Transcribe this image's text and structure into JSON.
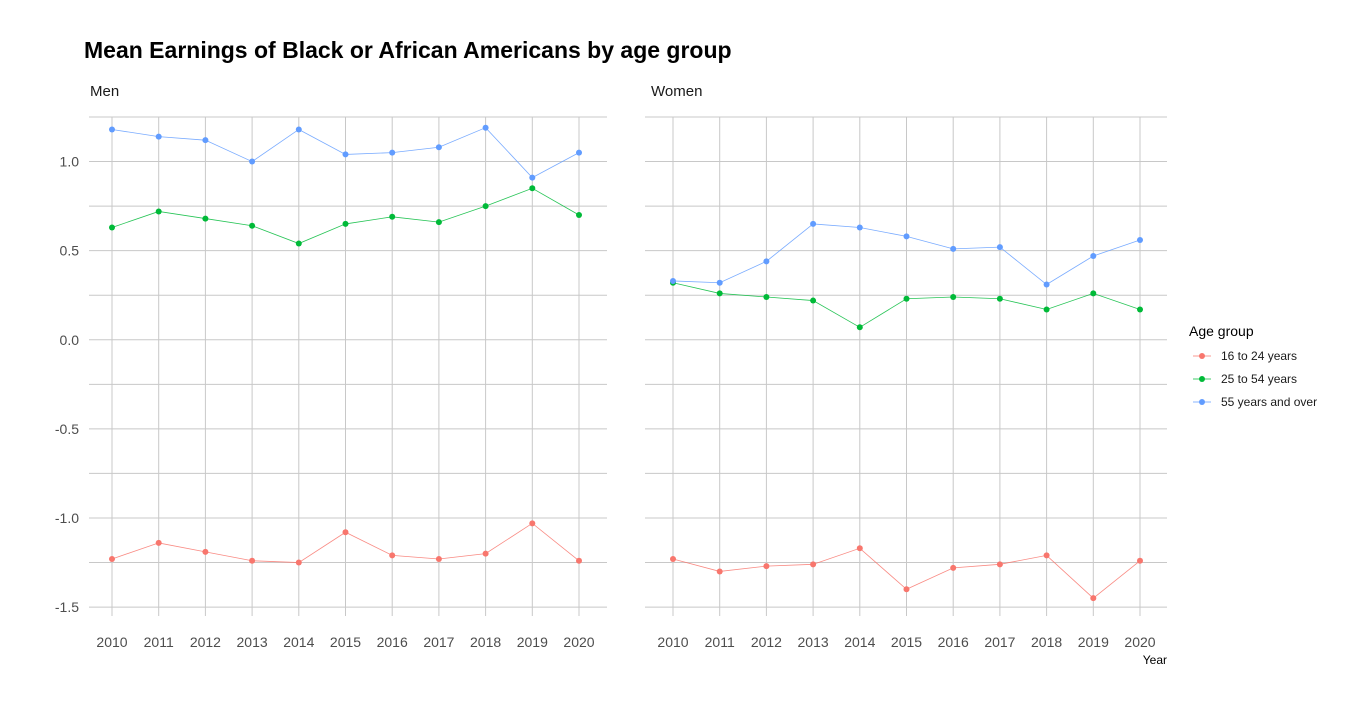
{
  "chart_data": {
    "type": "line",
    "title": "Mean Earnings of Black or African Americans by age group",
    "xlabel": "Year",
    "ylabel": "",
    "x": [
      2010,
      2011,
      2012,
      2013,
      2014,
      2015,
      2016,
      2017,
      2018,
      2019,
      2020
    ],
    "ylim": [
      -1.55,
      1.25
    ],
    "yticks": [
      "1.0",
      "0.5",
      "0.0",
      "-0.5",
      "-1.0",
      "-1.5"
    ],
    "ytick_values": [
      1.0,
      0.5,
      0.0,
      -0.5,
      -1.0,
      -1.5
    ],
    "grid": true,
    "legend": {
      "title": "Age group",
      "position": "right",
      "entries": [
        "16 to 24 years",
        "25 to 54 years",
        "55 years and over"
      ]
    },
    "colors": {
      "16 to 24 years": "#f8766d",
      "25 to 54 years": "#00ba38",
      "55 years and over": "#619cff"
    },
    "panels": [
      {
        "label": "Men",
        "series": [
          {
            "name": "16 to 24 years",
            "values": [
              -1.23,
              -1.14,
              -1.19,
              -1.24,
              -1.25,
              -1.08,
              -1.21,
              -1.23,
              -1.2,
              -1.03,
              -1.24
            ]
          },
          {
            "name": "25 to 54 years",
            "values": [
              0.63,
              0.72,
              0.68,
              0.64,
              0.54,
              0.65,
              0.69,
              0.66,
              0.75,
              0.85,
              0.7
            ]
          },
          {
            "name": "55 years and over",
            "values": [
              1.18,
              1.14,
              1.12,
              1.0,
              1.18,
              1.04,
              1.05,
              1.08,
              1.19,
              0.91,
              1.05
            ]
          }
        ]
      },
      {
        "label": "Women",
        "series": [
          {
            "name": "16 to 24 years",
            "values": [
              -1.23,
              -1.3,
              -1.27,
              -1.26,
              -1.17,
              -1.4,
              -1.28,
              -1.26,
              -1.21,
              -1.45,
              -1.24
            ]
          },
          {
            "name": "25 to 54 years",
            "values": [
              0.32,
              0.26,
              0.24,
              0.22,
              0.07,
              0.23,
              0.24,
              0.23,
              0.17,
              0.26,
              0.17
            ]
          },
          {
            "name": "55 years and over",
            "values": [
              0.33,
              0.32,
              0.44,
              0.65,
              0.63,
              0.58,
              0.51,
              0.52,
              0.31,
              0.47,
              0.56
            ]
          }
        ]
      }
    ]
  }
}
